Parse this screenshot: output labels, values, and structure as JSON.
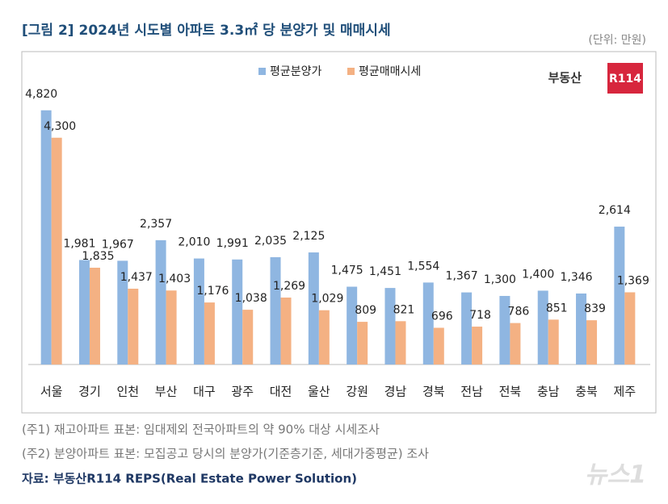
{
  "chart_data": {
    "type": "bar",
    "title": "[그림 2] 2024년 시도별 아파트 3.3㎡ 당 분양가 및 매매시세",
    "unit": "(단위: 만원)",
    "logo": [
      "부동산",
      "R114"
    ],
    "categories": [
      "서울",
      "경기",
      "인천",
      "부산",
      "대구",
      "광주",
      "대전",
      "울산",
      "강원",
      "경남",
      "경북",
      "전남",
      "전북",
      "충남",
      "충북",
      "제주"
    ],
    "series": [
      {
        "name": "평균분양가",
        "color": "#8fb6e1",
        "values": [
          4820,
          1981,
          1967,
          2357,
          2010,
          1991,
          2035,
          2125,
          1475,
          1451,
          1554,
          1367,
          1300,
          1400,
          1346,
          2614
        ],
        "value_labels": [
          "4,820",
          "1,981",
          "1,967",
          "2,357",
          "2,010",
          "1,991",
          "2,035",
          "2,125",
          "1,475",
          "1,451",
          "1,554",
          "1,367",
          "1,300",
          "1,400",
          "1,346",
          "2,614"
        ]
      },
      {
        "name": "평균매매시세",
        "color": "#f4b183",
        "values": [
          4300,
          1835,
          1437,
          1403,
          1176,
          1038,
          1269,
          1029,
          809,
          821,
          696,
          718,
          786,
          851,
          839,
          1369
        ],
        "value_labels": [
          "4,300",
          "1,835",
          "1,437",
          "1,403",
          "1,176",
          "1,038",
          "1,269",
          "1,029",
          "809",
          "821",
          "696",
          "718",
          "786",
          "851",
          "839",
          "1,369"
        ]
      }
    ],
    "ylim": [
      0,
      5000
    ],
    "notes": [
      "(주1) 재고아파트 표본: 임대제외 전국아파트의 약 90% 대상 시세조사",
      "(주2) 분양아파트 표본: 모집공고 당시의 분양가(기준층기준, 세대가중평균) 조사"
    ],
    "source": "자료: 부동산R114 REPS(Real Estate Power Solution)",
    "watermark": "뉴스1"
  }
}
